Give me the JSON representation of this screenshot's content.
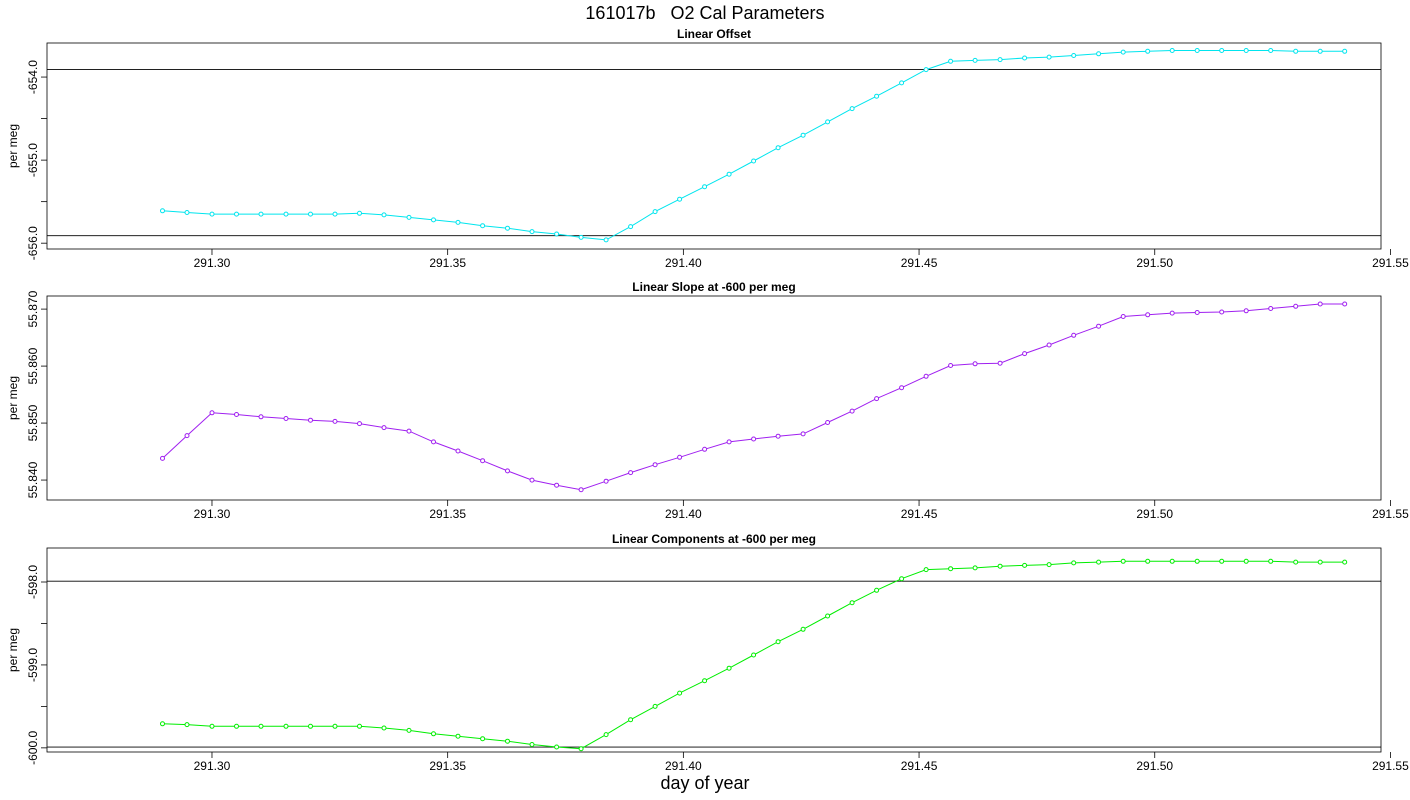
{
  "figure": {
    "title": "161017b   O2 Cal Parameters",
    "xlabel": "day of year"
  },
  "chart_data": [
    {
      "type": "line",
      "title": "Linear Offset",
      "ylabel": "per meg",
      "color": "#00e5ee",
      "xlim": [
        291.265,
        291.548
      ],
      "ylim": [
        -656.07,
        -653.59
      ],
      "xticks": [
        "291.30",
        "291.35",
        "291.40",
        "291.45",
        "291.50",
        "291.55"
      ],
      "yticks": [
        "-654.0",
        "-655.0",
        "-656.0"
      ],
      "y_minor_ticks": [
        -654.5,
        -655.5
      ],
      "hlines": [
        -653.91,
        -655.91
      ],
      "x": [
        291.2895,
        291.2947,
        291.3,
        291.3052,
        291.3104,
        291.3157,
        291.3209,
        291.3261,
        291.3313,
        291.3365,
        291.3418,
        291.347,
        291.3522,
        291.3574,
        291.3627,
        291.3679,
        291.3731,
        291.3783,
        291.3836,
        291.3888,
        291.394,
        291.3992,
        291.4045,
        291.4097,
        291.4149,
        291.4201,
        291.4254,
        291.4306,
        291.4358,
        291.441,
        291.4463,
        291.4515,
        291.4567,
        291.4619,
        291.4672,
        291.4724,
        291.4776,
        291.4828,
        291.4881,
        291.4933,
        291.4985,
        291.5037,
        291.509,
        291.5142,
        291.5194,
        291.5246,
        291.5299,
        291.5351,
        291.5403
      ],
      "y": [
        -655.61,
        -655.63,
        -655.65,
        -655.65,
        -655.65,
        -655.65,
        -655.65,
        -655.65,
        -655.64,
        -655.66,
        -655.69,
        -655.72,
        -655.75,
        -655.79,
        -655.82,
        -655.86,
        -655.89,
        -655.93,
        -655.96,
        -655.8,
        -655.62,
        -655.47,
        -655.32,
        -655.17,
        -655.01,
        -654.85,
        -654.7,
        -654.54,
        -654.38,
        -654.23,
        -654.07,
        -653.91,
        -653.81,
        -653.8,
        -653.79,
        -653.77,
        -653.76,
        -653.74,
        -653.72,
        -653.7,
        -653.69,
        -653.68,
        -653.68,
        -653.68,
        -653.68,
        -653.68,
        -653.69,
        -653.69,
        -653.69
      ]
    },
    {
      "type": "line",
      "title": "Linear Slope at -600 per meg",
      "ylabel": "per meg",
      "color": "#a020f0",
      "xlim": [
        291.265,
        291.548
      ],
      "ylim": [
        55.8365,
        55.8723
      ],
      "xticks": [
        "291.30",
        "291.35",
        "291.40",
        "291.45",
        "291.50",
        "291.55"
      ],
      "yticks": [
        "55.840",
        "55.850",
        "55.860",
        "55.870"
      ],
      "y_minor_ticks": [],
      "hlines": [],
      "x": [
        291.2895,
        291.2947,
        291.3,
        291.3052,
        291.3104,
        291.3157,
        291.3209,
        291.3261,
        291.3313,
        291.3365,
        291.3418,
        291.347,
        291.3522,
        291.3574,
        291.3627,
        291.3679,
        291.3731,
        291.3783,
        291.3836,
        291.3888,
        291.394,
        291.3992,
        291.4045,
        291.4097,
        291.4149,
        291.4201,
        291.4254,
        291.4306,
        291.4358,
        291.441,
        291.4463,
        291.4515,
        291.4567,
        291.4619,
        291.4672,
        291.4724,
        291.4776,
        291.4828,
        291.4881,
        291.4933,
        291.4985,
        291.5037,
        291.509,
        291.5142,
        291.5194,
        291.5246,
        291.5299,
        291.5351,
        291.5403
      ],
      "y": [
        55.8438,
        55.8478,
        55.8518,
        55.8515,
        55.8511,
        55.8508,
        55.8505,
        55.8503,
        55.8499,
        55.8492,
        55.8486,
        55.8467,
        55.8451,
        55.8434,
        55.8416,
        55.84,
        55.8391,
        55.8383,
        55.8398,
        55.8413,
        55.8427,
        55.844,
        55.8454,
        55.8467,
        55.8472,
        55.8477,
        55.8481,
        55.8501,
        55.8521,
        55.8543,
        55.8562,
        55.8582,
        55.8601,
        55.8604,
        55.8605,
        55.8622,
        55.8637,
        55.8654,
        55.867,
        55.8687,
        55.869,
        55.8693,
        55.8694,
        55.8695,
        55.8697,
        55.8701,
        55.8705,
        55.8709,
        55.8709
      ]
    },
    {
      "type": "line",
      "title": "Linear Components at -600 per meg",
      "ylabel": "per meg",
      "color": "#00ee00",
      "xlim": [
        291.265,
        291.548
      ],
      "ylim": [
        -600.05,
        -597.59
      ],
      "xticks": [
        "291.30",
        "291.35",
        "291.40",
        "291.45",
        "291.50",
        "291.55"
      ],
      "yticks": [
        "-598.0",
        "-599.0",
        "-600.0"
      ],
      "y_minor_ticks": [
        -598.5,
        -599.5
      ],
      "hlines": [
        -597.99,
        -599.99
      ],
      "x": [
        291.2895,
        291.2947,
        291.3,
        291.3052,
        291.3104,
        291.3157,
        291.3209,
        291.3261,
        291.3313,
        291.3365,
        291.3418,
        291.347,
        291.3522,
        291.3574,
        291.3627,
        291.3679,
        291.3731,
        291.3783,
        291.3836,
        291.3888,
        291.394,
        291.3992,
        291.4045,
        291.4097,
        291.4149,
        291.4201,
        291.4254,
        291.4306,
        291.4358,
        291.441,
        291.4463,
        291.4515,
        291.4567,
        291.4619,
        291.4672,
        291.4724,
        291.4776,
        291.4828,
        291.4881,
        291.4933,
        291.4985,
        291.5037,
        291.509,
        291.5142,
        291.5194,
        291.5246,
        291.5299,
        291.5351,
        291.5403
      ],
      "y": [
        -599.71,
        -599.72,
        -599.74,
        -599.74,
        -599.74,
        -599.74,
        -599.74,
        -599.74,
        -599.74,
        -599.76,
        -599.79,
        -599.83,
        -599.86,
        -599.89,
        -599.92,
        -599.96,
        -599.99,
        -600.01,
        -599.84,
        -599.66,
        -599.5,
        -599.34,
        -599.19,
        -599.04,
        -598.88,
        -598.72,
        -598.57,
        -598.41,
        -598.25,
        -598.1,
        -597.96,
        -597.85,
        -597.84,
        -597.83,
        -597.81,
        -597.8,
        -597.79,
        -597.77,
        -597.76,
        -597.75,
        -597.75,
        -597.75,
        -597.75,
        -597.75,
        -597.75,
        -597.75,
        -597.76,
        -597.76,
        -597.76
      ]
    }
  ]
}
